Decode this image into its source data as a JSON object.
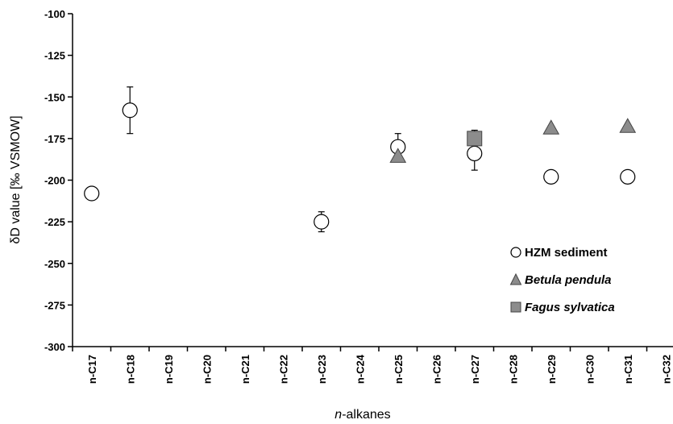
{
  "chart_data": {
    "type": "scatter",
    "title": "",
    "xlabel_prefix": "n",
    "xlabel_suffix": "-alkanes",
    "ylabel": "δD value [‰ VSMOW]",
    "ylim": [
      -300,
      -100
    ],
    "yticks": [
      -100,
      -125,
      -150,
      -175,
      -200,
      -225,
      -250,
      -275,
      -300
    ],
    "ytick_labels": [
      "-100",
      "-125",
      "-150",
      "-175",
      "-200",
      "-225",
      "-250",
      "-275",
      "-300"
    ],
    "categories": [
      "n-C17",
      "n-C18",
      "n-C19",
      "n-C20",
      "n-C21",
      "n-C22",
      "n-C23",
      "n-C24",
      "n-C25",
      "n-C26",
      "n-C27",
      "n-C28",
      "n-C29",
      "n-C30",
      "n-C31",
      "n-C32"
    ],
    "grid": false,
    "legend_position": "bottom-right",
    "series": [
      {
        "name": "HZM sediment",
        "marker": "circle",
        "color": "#ffffff",
        "points": [
          {
            "x": "n-C17",
            "y": -208,
            "err": 0
          },
          {
            "x": "n-C18",
            "y": -158,
            "err": 14
          },
          {
            "x": "n-C23",
            "y": -225,
            "err": 6
          },
          {
            "x": "n-C25",
            "y": -180,
            "err": 8
          },
          {
            "x": "n-C27",
            "y": -184,
            "err": 10
          },
          {
            "x": "n-C29",
            "y": -198,
            "err": 0
          },
          {
            "x": "n-C31",
            "y": -198,
            "err": 4
          }
        ]
      },
      {
        "name": "Betula pendula",
        "marker": "triangle",
        "color": "#8c8c8c",
        "points": [
          {
            "x": "n-C25",
            "y": -186
          },
          {
            "x": "n-C29",
            "y": -169
          },
          {
            "x": "n-C31",
            "y": -168
          }
        ]
      },
      {
        "name": "Fagus sylvatica",
        "marker": "square",
        "color": "#8c8c8c",
        "points": [
          {
            "x": "n-C27",
            "y": -175,
            "err": 5
          }
        ]
      }
    ]
  }
}
